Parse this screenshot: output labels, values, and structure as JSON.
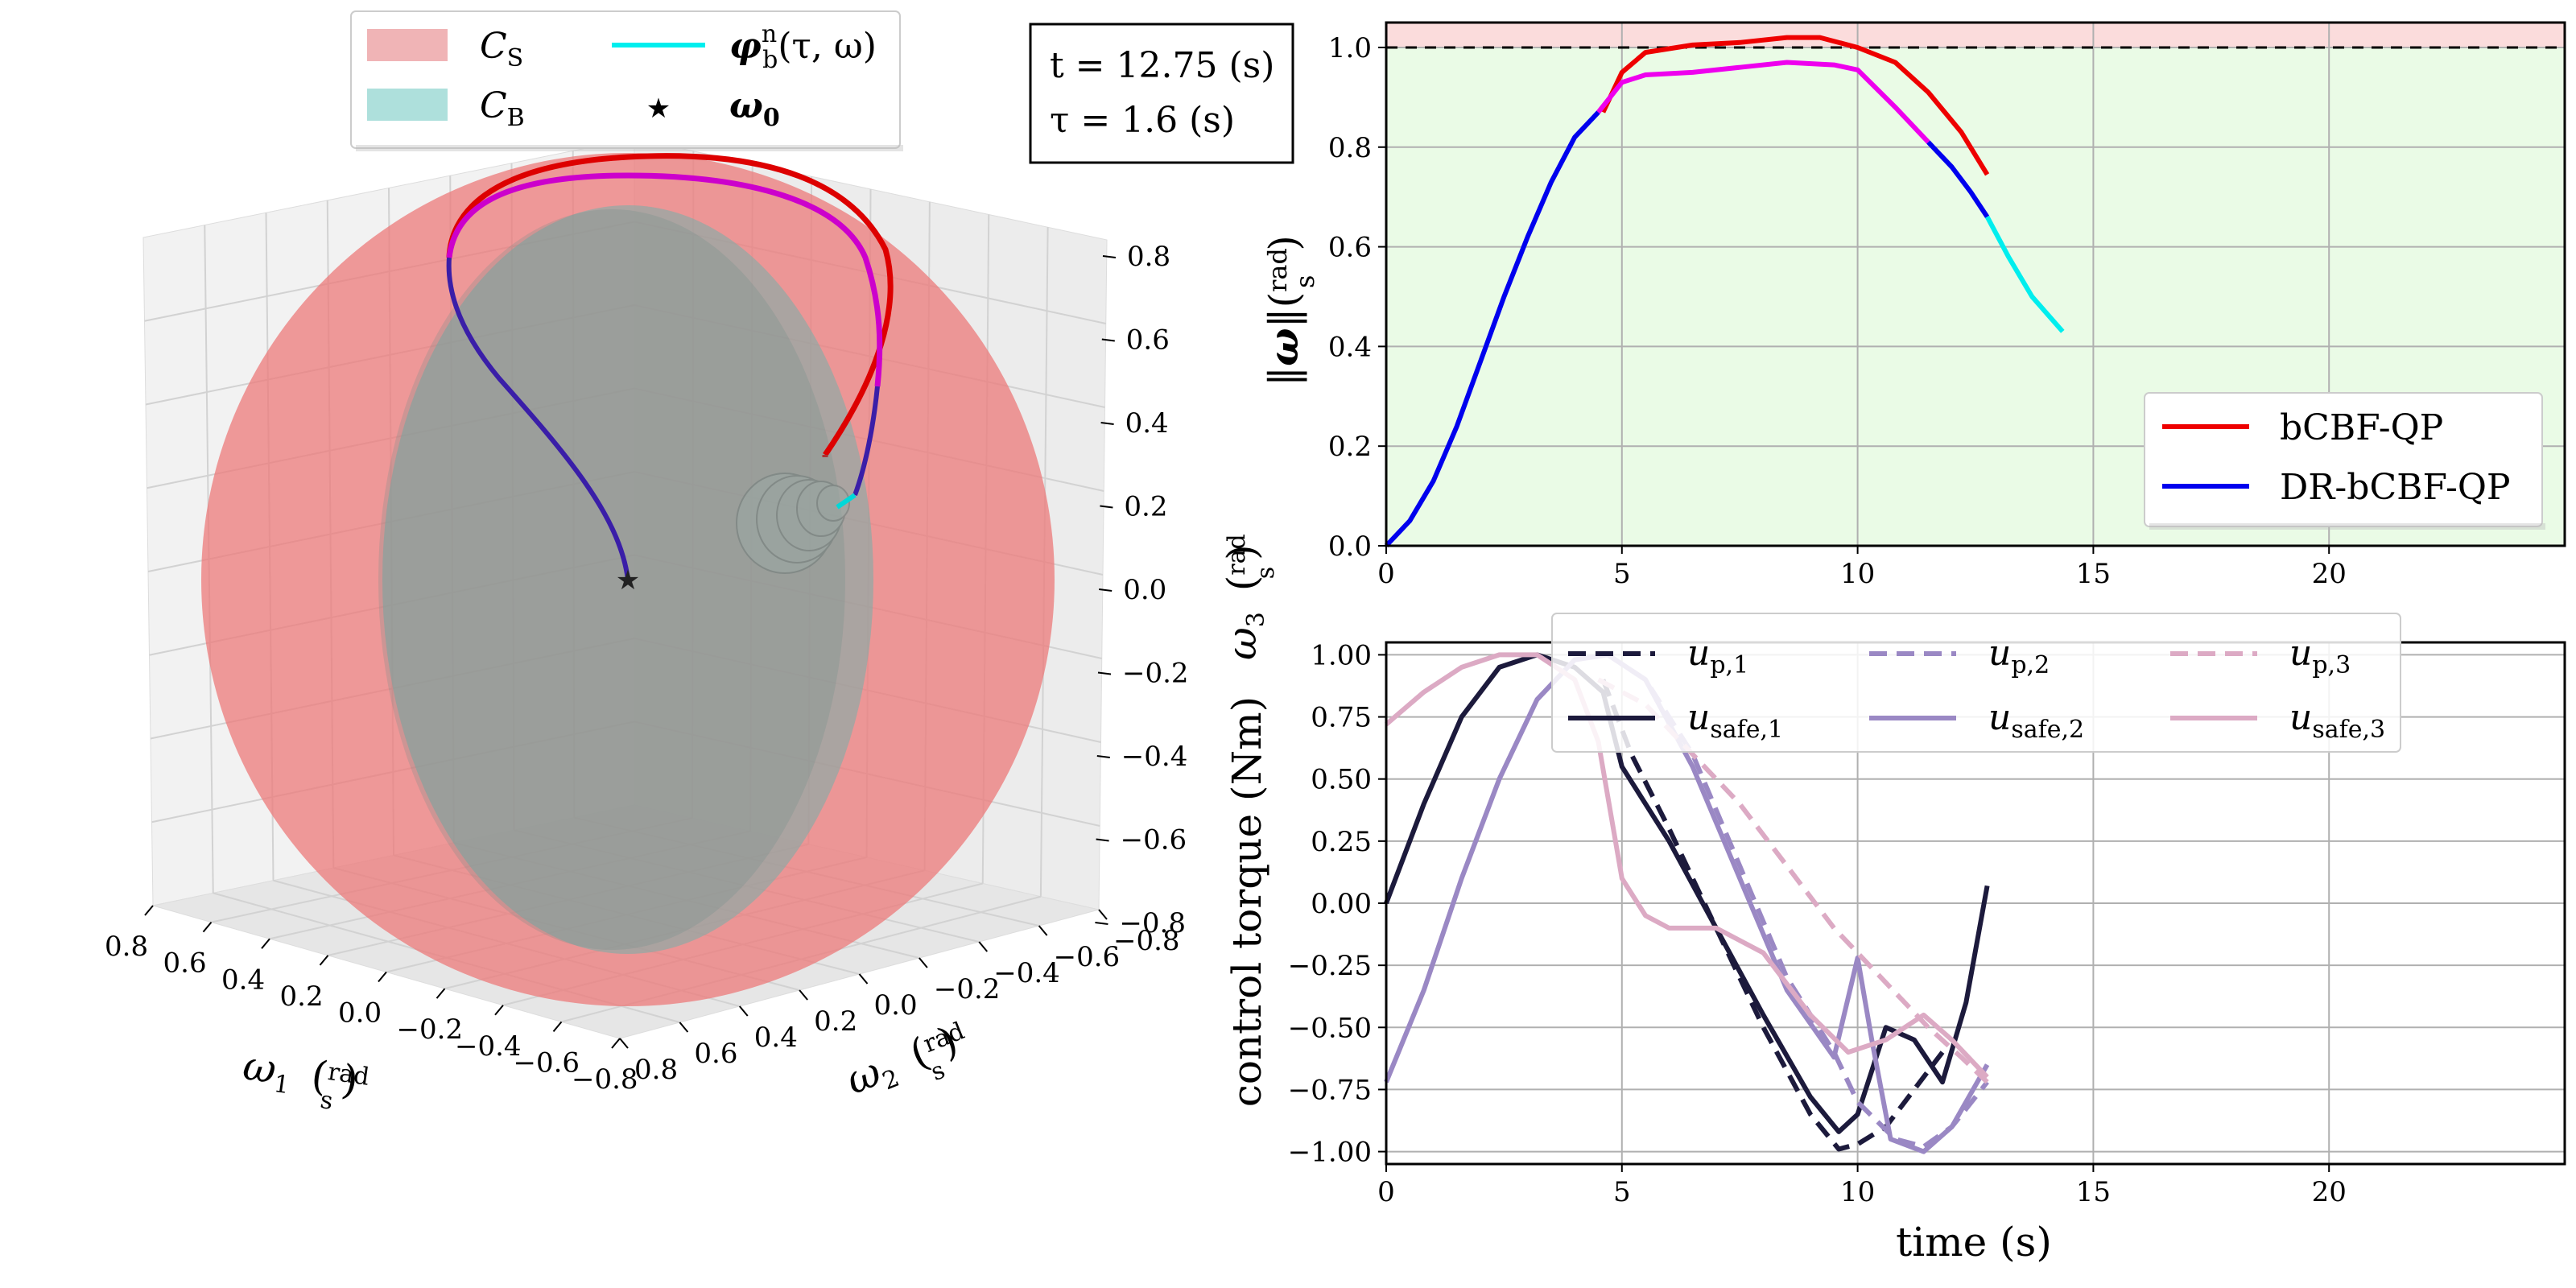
{
  "chart_data": [
    {
      "type": "line",
      "panel": "3d",
      "legend": {
        "items": [
          {
            "label": "C",
            "sub": "S",
            "kind": "patch",
            "color": "#f4b8ba"
          },
          {
            "label": "C",
            "sub": "B",
            "kind": "patch",
            "color": "#a8dcd8"
          },
          {
            "label": "φ",
            "sup": "n",
            "sub": "b",
            "tail": "(τ, ω)",
            "kind": "line",
            "color": "#00eeee"
          },
          {
            "label": "ω",
            "sub": "0",
            "kind": "star",
            "color": "#000000"
          }
        ]
      },
      "info_box": {
        "line1": "t = 12.75 (s)",
        "line2": "τ = 1.6 (s)"
      },
      "x_label": {
        "sym": "ω",
        "sub": "1",
        "unit": "rad",
        "per": "s"
      },
      "y_label": {
        "sym": "ω",
        "sub": "2",
        "unit": "rad",
        "per": "s"
      },
      "z_label": {
        "sym": "ω",
        "sub": "3",
        "unit": "rad",
        "per": "s"
      },
      "x_ticks": [
        "0.8",
        "0.6",
        "0.4",
        "0.2",
        "0.0",
        "−0.2",
        "−0.4",
        "−0.6",
        "−0.8"
      ],
      "y_ticks": [
        "0.8",
        "0.6",
        "0.4",
        "0.2",
        "0.0",
        "−0.2",
        "−0.4",
        "−0.6",
        "−0.8"
      ],
      "z_ticks": [
        "0.8",
        "0.6",
        "0.4",
        "0.2",
        "0.0",
        "−0.2",
        "−0.4",
        "−0.6",
        "−0.8"
      ],
      "colors": {
        "safe_set": "#f08080",
        "backup_set": "#8fc9c4",
        "bcbf": "#e00000",
        "dr_bcbf": "#d000d0",
        "dr_dark": "#3020a0"
      }
    },
    {
      "type": "line",
      "panel": "norm",
      "ylabel": "||ω||(rad/s)",
      "xlim": [
        0,
        25
      ],
      "ylim": [
        0,
        1.05
      ],
      "x_ticks": [
        "0",
        "5",
        "10",
        "15",
        "20"
      ],
      "y_ticks": [
        "0.0",
        "0.2",
        "0.4",
        "0.6",
        "0.8",
        "1.0"
      ],
      "threshold": 1.0,
      "series": [
        {
          "name": "bCBF-QP",
          "color": "#ee0000",
          "x": [
            4.6,
            5.0,
            5.5,
            6.5,
            7.5,
            8.5,
            9.2,
            10.0,
            10.8,
            11.5,
            12.2,
            12.75
          ],
          "y": [
            0.87,
            0.95,
            0.99,
            1.005,
            1.01,
            1.02,
            1.02,
            1.0,
            0.97,
            0.91,
            0.83,
            0.745
          ]
        },
        {
          "name": "DR-bCBF-QP",
          "color": "#0000ee",
          "x": [
            0,
            0.5,
            1.0,
            1.5,
            2.0,
            2.5,
            3.0,
            3.5,
            4.0,
            4.5
          ],
          "y": [
            0,
            0.05,
            0.13,
            0.24,
            0.37,
            0.5,
            0.62,
            0.73,
            0.82,
            0.87
          ]
        },
        {
          "name": "",
          "color": "#ee00ee",
          "x": [
            4.5,
            5.0,
            5.5,
            6.5,
            7.5,
            8.5,
            9.5,
            10.0,
            10.8,
            11.5
          ],
          "y": [
            0.87,
            0.93,
            0.945,
            0.95,
            0.96,
            0.97,
            0.965,
            0.955,
            0.88,
            0.81
          ]
        },
        {
          "name": "",
          "color": "#0000ee",
          "x": [
            11.5,
            12.0,
            12.4,
            12.75
          ],
          "y": [
            0.81,
            0.76,
            0.71,
            0.66
          ]
        },
        {
          "name": "",
          "color": "#00eeee",
          "x": [
            12.75,
            13.2,
            13.7,
            14.35
          ],
          "y": [
            0.66,
            0.58,
            0.5,
            0.43
          ]
        }
      ]
    },
    {
      "type": "line",
      "panel": "torque",
      "xlabel": "time (s)",
      "ylabel": "control torque (Nm)",
      "xlim": [
        0,
        25
      ],
      "ylim": [
        -1.05,
        1.05
      ],
      "x_ticks": [
        "0",
        "5",
        "10",
        "15",
        "20"
      ],
      "y_ticks": [
        "1.00",
        "0.75",
        "0.50",
        "0.25",
        "0.00",
        "−0.25",
        "−0.50",
        "−0.75",
        "−1.00"
      ],
      "series": [
        {
          "name": "u_p,1",
          "label": "u",
          "sub": "p,1",
          "color": "#1c1a3c",
          "dash": true,
          "x": [
            4.6,
            5.2,
            6.0,
            7.0,
            8.0,
            9.0,
            9.6,
            10.0,
            10.6,
            11.2,
            11.8
          ],
          "y": [
            0.9,
            0.6,
            0.3,
            -0.1,
            -0.5,
            -0.85,
            -0.99,
            -0.97,
            -0.9,
            -0.75,
            -0.6
          ]
        },
        {
          "name": "u_safe,1",
          "label": "u",
          "sub": "safe,1",
          "color": "#1c1a3c",
          "dash": false,
          "x": [
            0,
            0.8,
            1.6,
            2.4,
            3.2,
            4.0,
            4.6,
            5.0,
            6.0,
            7.0,
            8.0,
            9.0,
            9.6,
            10.0,
            10.6,
            11.2,
            11.8,
            12.3,
            12.75
          ],
          "y": [
            0.0,
            0.4,
            0.75,
            0.95,
            1.0,
            0.95,
            0.85,
            0.55,
            0.25,
            -0.1,
            -0.45,
            -0.78,
            -0.92,
            -0.85,
            -0.5,
            -0.55,
            -0.72,
            -0.4,
            0.07
          ]
        },
        {
          "name": "u_p,2",
          "label": "u",
          "sub": "p,2",
          "color": "#9a88c4",
          "dash": true,
          "x": [
            4.7,
            5.5,
            6.5,
            7.5,
            8.5,
            9.5,
            10.0,
            10.8,
            11.4,
            12.0,
            12.75
          ],
          "y": [
            1.0,
            0.9,
            0.6,
            0.15,
            -0.3,
            -0.6,
            -0.8,
            -0.95,
            -0.98,
            -0.9,
            -0.72
          ]
        },
        {
          "name": "u_safe,2",
          "label": "u",
          "sub": "safe,2",
          "color": "#9a88c4",
          "dash": false,
          "x": [
            0,
            0.8,
            1.6,
            2.4,
            3.2,
            4.0,
            4.7,
            5.5,
            6.5,
            7.5,
            8.5,
            9.5,
            10.0,
            10.3,
            10.7,
            11.4,
            12.0,
            12.75
          ],
          "y": [
            -0.72,
            -0.35,
            0.1,
            0.5,
            0.82,
            0.98,
            1.0,
            0.9,
            0.55,
            0.1,
            -0.35,
            -0.62,
            -0.22,
            -0.55,
            -0.95,
            -1.0,
            -0.9,
            -0.65
          ]
        },
        {
          "name": "u_p,3",
          "label": "u",
          "sub": "p,3",
          "color": "#dcaac4",
          "dash": true,
          "x": [
            4.5,
            5.5,
            6.5,
            7.5,
            8.5,
            9.5,
            10.5,
            11.5,
            12.2,
            12.75
          ],
          "y": [
            0.9,
            0.8,
            0.6,
            0.4,
            0.15,
            -0.1,
            -0.3,
            -0.5,
            -0.62,
            -0.72
          ]
        },
        {
          "name": "u_safe,3",
          "label": "u",
          "sub": "safe,3",
          "color": "#dcaac4",
          "dash": false,
          "x": [
            0,
            0.8,
            1.6,
            2.4,
            3.2,
            4.0,
            4.5,
            5.0,
            5.5,
            6.0,
            7.0,
            8.0,
            9.0,
            9.8,
            10.6,
            11.4,
            12.0,
            12.75
          ],
          "y": [
            0.72,
            0.85,
            0.95,
            1.0,
            1.0,
            0.9,
            0.65,
            0.1,
            -0.05,
            -0.1,
            -0.1,
            -0.2,
            -0.45,
            -0.6,
            -0.55,
            -0.45,
            -0.55,
            -0.7
          ]
        }
      ]
    }
  ]
}
